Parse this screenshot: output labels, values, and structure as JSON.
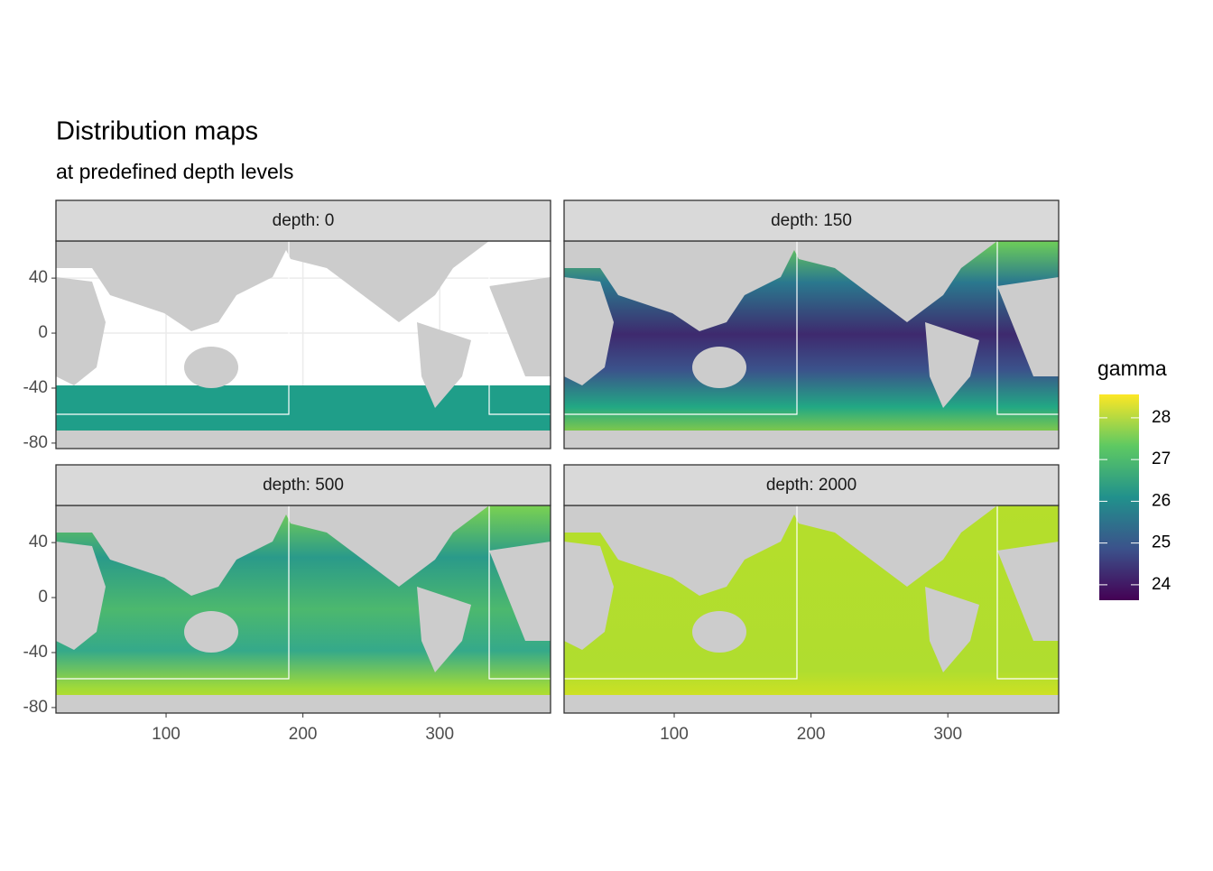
{
  "chart_data": {
    "type": "raster",
    "title": "Distribution maps",
    "subtitle": "at predefined depth levels",
    "panels": [
      {
        "label": "depth: 0"
      },
      {
        "label": "depth: 150"
      },
      {
        "label": "depth: 500"
      },
      {
        "label": "depth: 2000"
      }
    ],
    "xlim": [
      19.5,
      381
    ],
    "xticks": [
      100,
      200,
      300
    ],
    "ylim": [
      -84,
      67
    ],
    "yticks": [
      40,
      0,
      -40,
      -80
    ],
    "legend": {
      "title": "gamma",
      "lim": [
        23.63,
        28.56
      ],
      "ticks": [
        28,
        27,
        26,
        25,
        24
      ],
      "colors": [
        "#440154",
        "#3b528b",
        "#21918c",
        "#5ec962",
        "#fde725"
      ]
    }
  }
}
